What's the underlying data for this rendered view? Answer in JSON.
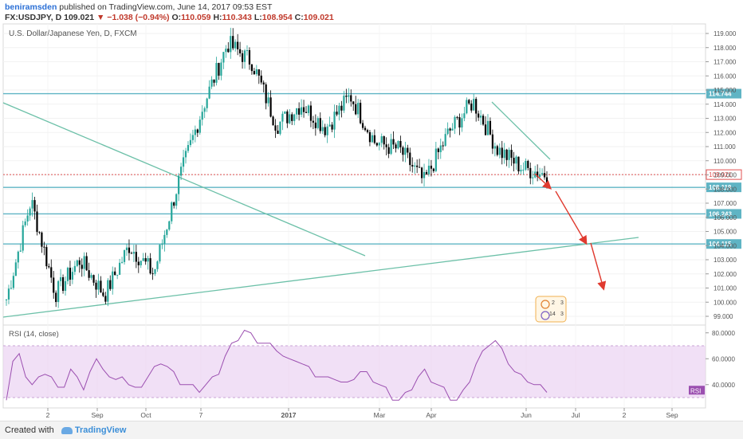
{
  "header": {
    "author": "beniramsden",
    "published_text": "published on TradingView.com, June 14, 2017 09:53 EST",
    "symbol": "FX:USDJPY, D",
    "last": "109.021",
    "change": "▼ −1.038 (−0.94%)",
    "open_label": "O:",
    "open": "110.059",
    "high_label": "H:",
    "high": "110.343",
    "low_label": "L:",
    "low": "108.954",
    "close_label": "C:",
    "close": "109.021"
  },
  "chart_title": "U.S. Dollar/Japanese Yen, D, FXCM",
  "colors": {
    "up": "#26a69a",
    "down": "#000000",
    "hline": "#5fb4c4",
    "trend": "#6cc0a8",
    "arrow": "#e03a2f",
    "rsi_line": "#9b4fb0",
    "rsi_band": "#ecd6f3",
    "price_line": "#e05050"
  },
  "chart_data": {
    "type": "candlestick",
    "price_axis": {
      "ticks": [
        "119.000",
        "118.000",
        "117.000",
        "116.000",
        "115.000",
        "114.000",
        "113.000",
        "112.000",
        "111.000",
        "110.000",
        "109.000",
        "108.000",
        "107.000",
        "106.000",
        "105.000",
        "104.000",
        "103.000",
        "102.000",
        "101.000",
        "100.000",
        "99.000"
      ],
      "ylim": [
        98.5,
        119.6
      ]
    },
    "time_axis": {
      "ticks": [
        "2",
        "Sep",
        "Oct",
        "7",
        "2017",
        "Mar",
        "Apr",
        "Jun",
        "Jul",
        "2",
        "Sep"
      ]
    },
    "horizontal_levels": [
      {
        "value": 114.744,
        "label": "114.744"
      },
      {
        "value": 108.119,
        "label": "108.119"
      },
      {
        "value": 106.243,
        "label": "106.243"
      },
      {
        "value": 104.115,
        "label": "104.115"
      }
    ],
    "current_price": {
      "value": 109.021,
      "label": "109.021"
    },
    "key_closes": [
      {
        "date": "2016-07",
        "close": 100.2
      },
      {
        "date": "2016-07",
        "close": 107.2
      },
      {
        "date": "2016-08",
        "close": 100.6
      },
      {
        "date": "2016-09",
        "close": 103.0
      },
      {
        "date": "2016-09",
        "close": 100.5
      },
      {
        "date": "2016-10",
        "close": 104.0
      },
      {
        "date": "2016-11",
        "close": 102.0
      },
      {
        "date": "2016-11",
        "close": 108.5
      },
      {
        "date": "2016-12",
        "close": 113.8
      },
      {
        "date": "2016-12",
        "close": 118.3
      },
      {
        "date": "2017-01",
        "close": 117.0
      },
      {
        "date": "2017-01",
        "close": 112.5
      },
      {
        "date": "2017-02",
        "close": 114.0
      },
      {
        "date": "2017-02",
        "close": 112.3
      },
      {
        "date": "2017-03",
        "close": 114.6
      },
      {
        "date": "2017-03",
        "close": 111.3
      },
      {
        "date": "2017-04",
        "close": 110.8
      },
      {
        "date": "2017-04",
        "close": 108.5
      },
      {
        "date": "2017-05",
        "close": 112.0
      },
      {
        "date": "2017-05",
        "close": 114.2
      },
      {
        "date": "2017-05",
        "close": 110.8
      },
      {
        "date": "2017-06",
        "close": 109.5
      },
      {
        "date": "2017-06",
        "close": 109.021
      }
    ],
    "rsi": {
      "label": "RSI (14, close)",
      "tag": "RSI",
      "ticks": [
        "80.0000",
        "60.0000",
        "40.0000"
      ],
      "ylim": [
        22,
        86
      ],
      "band": [
        30,
        70
      ],
      "values": [
        30,
        58,
        62,
        48,
        40,
        44,
        50,
        46,
        36,
        40,
        52,
        44,
        38,
        50,
        58,
        54,
        46,
        42,
        48,
        40,
        36,
        40,
        46,
        52,
        58,
        54,
        48,
        42,
        40,
        38,
        36,
        40,
        44,
        50,
        62,
        70,
        76,
        82,
        78,
        74,
        72,
        70,
        68,
        62,
        58,
        60,
        56,
        52,
        48,
        46,
        44,
        46,
        42,
        40,
        46,
        50,
        48,
        44,
        40,
        36,
        30,
        28,
        32,
        38,
        46,
        50,
        44,
        40,
        36,
        30,
        28,
        34,
        44,
        56,
        64,
        72,
        74,
        66,
        58,
        50,
        46,
        44,
        40,
        38,
        36
      ]
    }
  },
  "footer": {
    "created_with": "Created with",
    "brand": "TradingView"
  }
}
